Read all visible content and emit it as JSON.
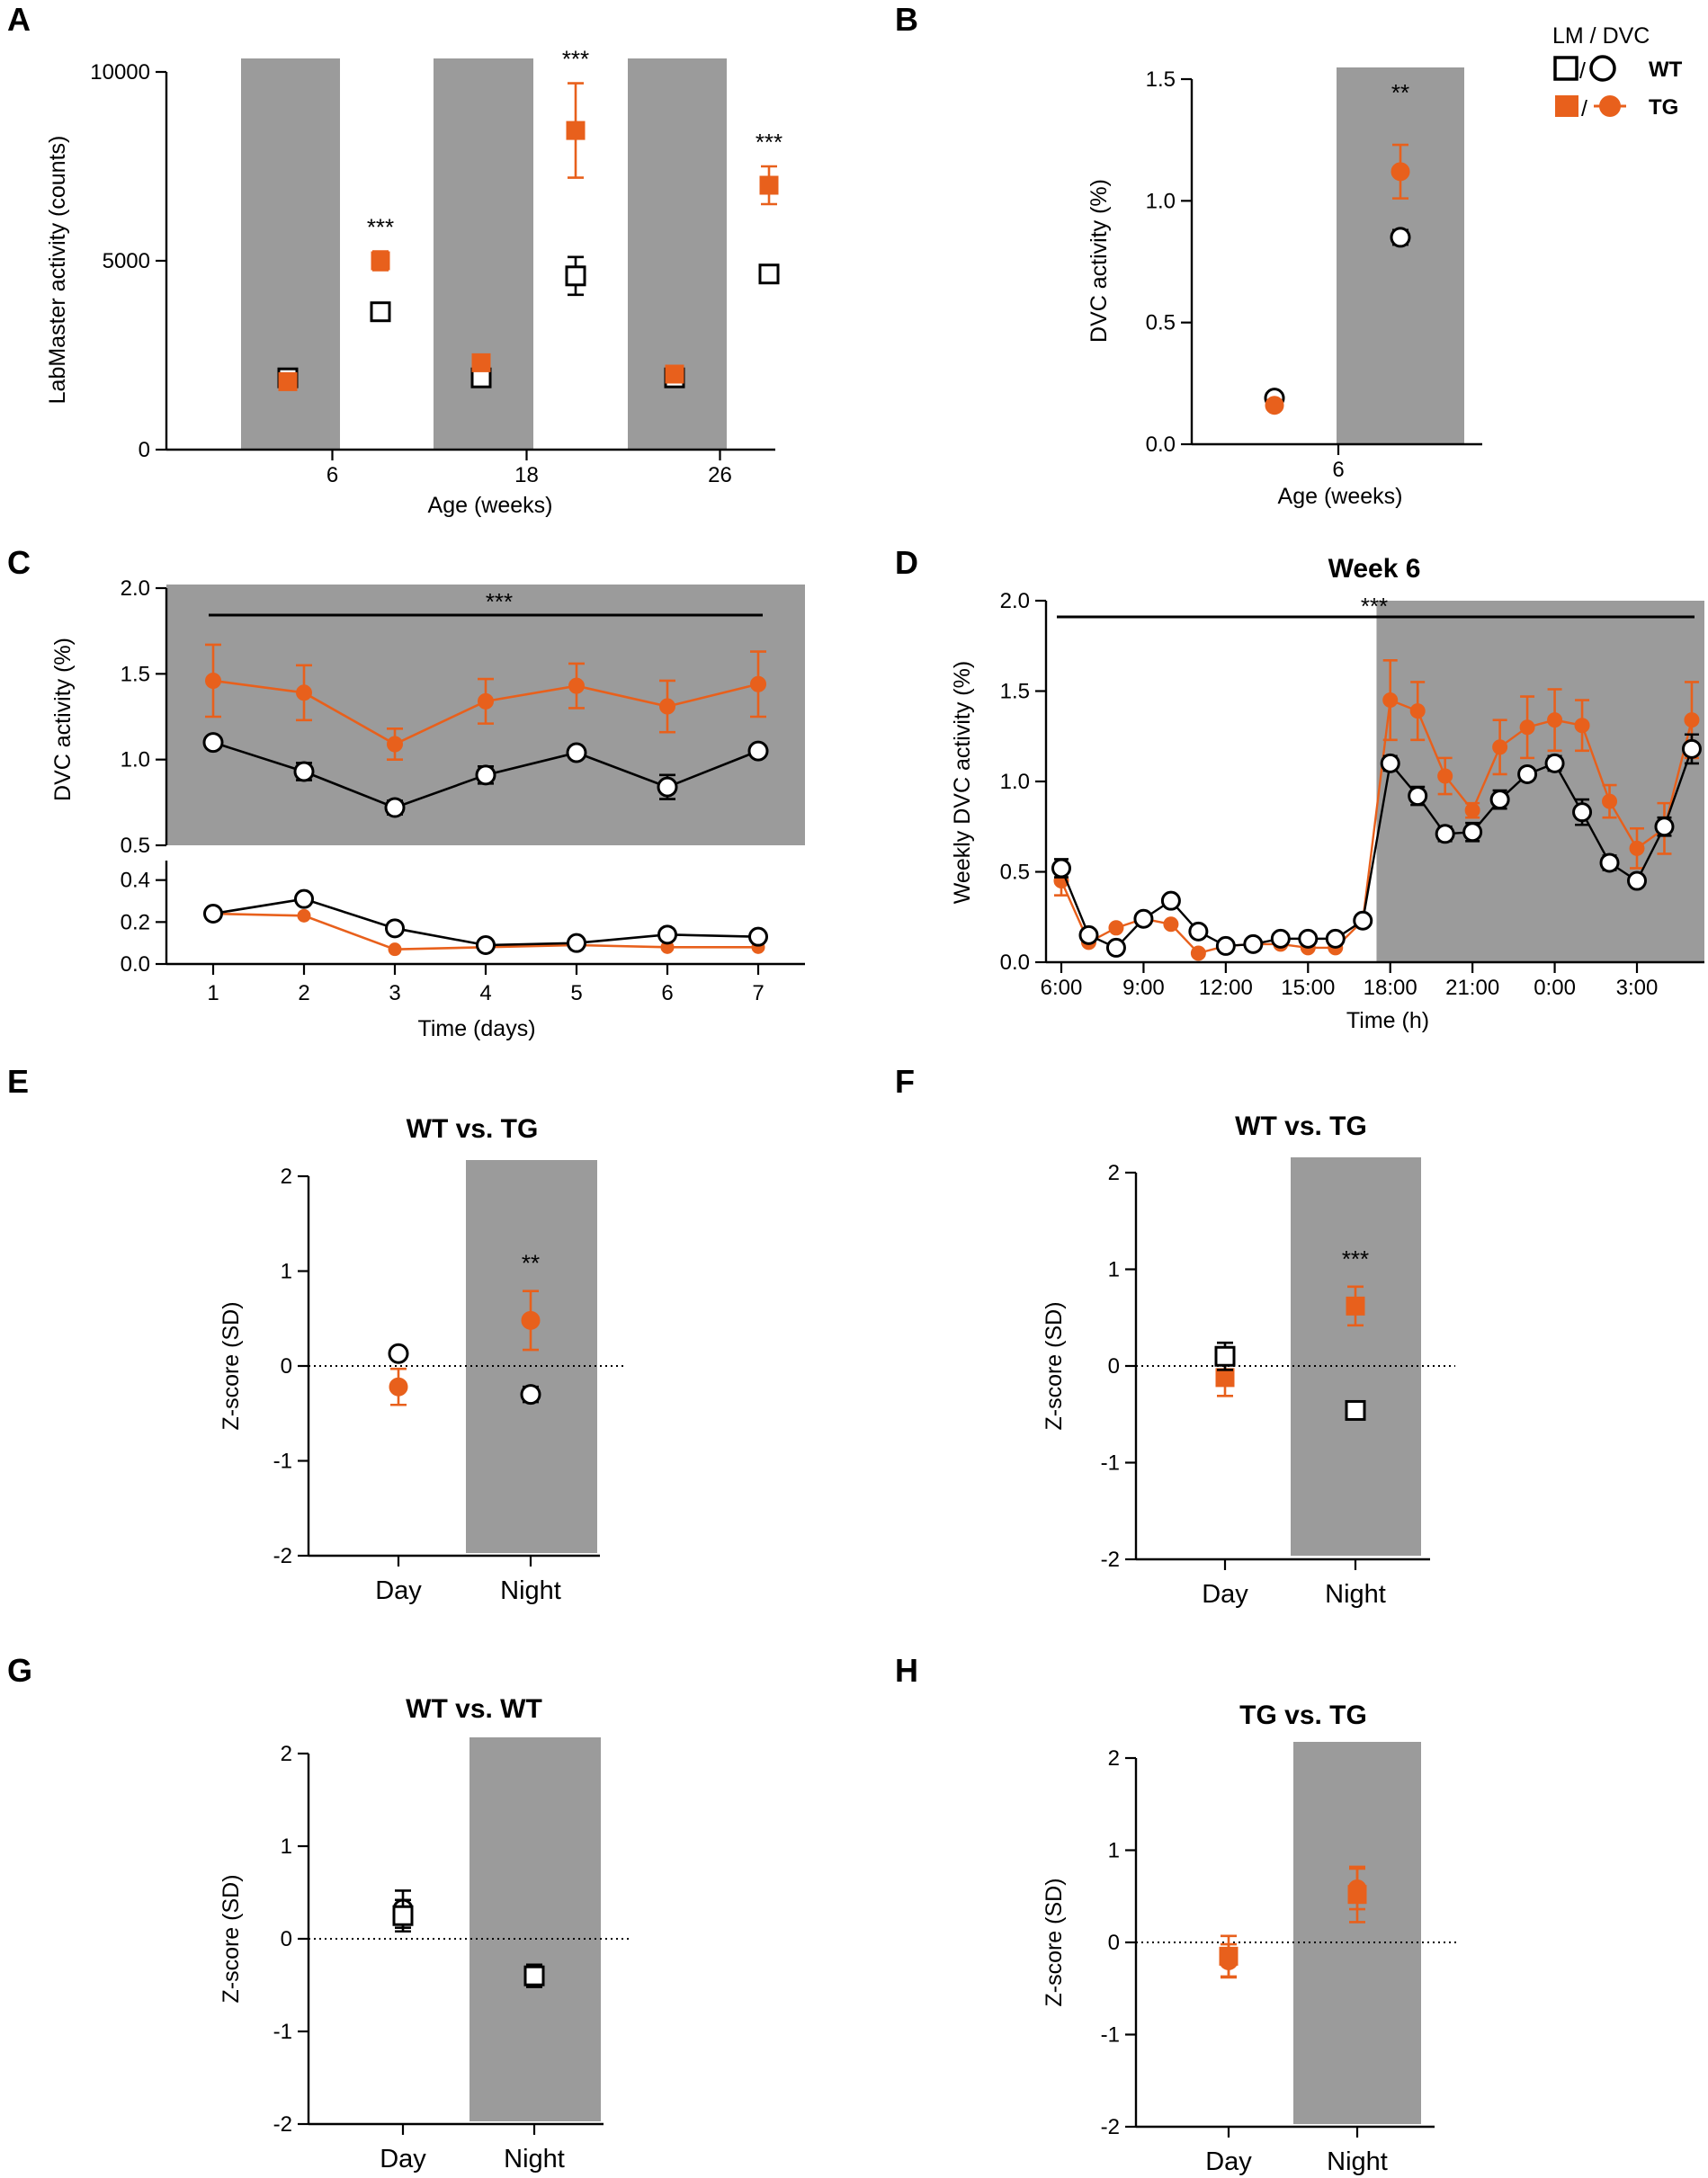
{
  "colors": {
    "wt": "#000000",
    "tg": "#E8601C",
    "night_shade": "#9B9B9B",
    "background": "#FFFFFF"
  },
  "legend": {
    "header": "LM / DVC",
    "wt_label": "WT",
    "tg_label": "TG"
  },
  "chart_data": [
    {
      "panel": "A",
      "type": "scatter",
      "title": "",
      "xlabel": "Age (weeks)",
      "ylabel": "LabMaster activity (counts)",
      "ylim": [
        0,
        10000
      ],
      "yticks": [
        0,
        5000,
        10000
      ],
      "ytick_labels": [
        "0",
        "5000",
        "10000"
      ],
      "categories": [
        "6",
        "18",
        "26"
      ],
      "series": [
        {
          "name": "WT",
          "marker": "square-open",
          "day": [
            1900,
            1900,
            1900
          ],
          "day_err": [
            50,
            120,
            150
          ],
          "night": [
            3650,
            4600,
            4650
          ],
          "night_err": [
            120,
            500,
            220
          ]
        },
        {
          "name": "TG",
          "marker": "square-filled",
          "day": [
            1800,
            2300,
            2000
          ],
          "day_err": [
            60,
            100,
            80
          ],
          "night": [
            5000,
            8450,
            7000
          ],
          "night_err": [
            250,
            1250,
            500
          ]
        }
      ],
      "significance": [
        "***",
        "***",
        "***"
      ]
    },
    {
      "panel": "B",
      "type": "scatter",
      "title": "",
      "xlabel": "Age (weeks)",
      "ylabel": "DVC activity (%)",
      "ylim": [
        0,
        1.5
      ],
      "yticks": [
        0,
        0.5,
        1.0,
        1.5
      ],
      "ytick_labels": [
        "0.0",
        "0.5",
        "1.0",
        "1.5"
      ],
      "categories": [
        "6"
      ],
      "series": [
        {
          "name": "WT",
          "marker": "circle-open",
          "day": [
            0.19
          ],
          "day_err": [
            0.01
          ],
          "night": [
            0.85
          ],
          "night_err": [
            0.03
          ]
        },
        {
          "name": "TG",
          "marker": "circle-filled",
          "day": [
            0.16
          ],
          "day_err": [
            0.01
          ],
          "night": [
            1.12
          ],
          "night_err": [
            0.11
          ]
        }
      ],
      "significance": [
        "**"
      ]
    },
    {
      "panel": "C",
      "type": "line",
      "title": "",
      "xlabel": "Time (days)",
      "ylabel": "DVC activity (%)",
      "x": [
        1,
        2,
        3,
        4,
        5,
        6,
        7
      ],
      "upper_ylim": [
        0.5,
        2.0
      ],
      "upper_yticks": [
        0.5,
        1.0,
        1.5,
        2.0
      ],
      "upper_ytick_labels": [
        "0.5",
        "1.0",
        "1.5",
        "2.0"
      ],
      "lower_ylim": [
        0.0,
        0.45
      ],
      "lower_yticks": [
        0.0,
        0.2,
        0.4
      ],
      "lower_ytick_labels": [
        "0.0",
        "0.2",
        "0.4"
      ],
      "night_series": [
        {
          "name": "WT",
          "values": [
            1.1,
            0.93,
            0.72,
            0.91,
            1.04,
            0.84,
            1.05
          ],
          "err": [
            0.01,
            0.05,
            0.04,
            0.05,
            0.01,
            0.07,
            0.01
          ]
        },
        {
          "name": "TG",
          "values": [
            1.46,
            1.39,
            1.09,
            1.34,
            1.43,
            1.31,
            1.44
          ],
          "err": [
            0.21,
            0.16,
            0.09,
            0.13,
            0.13,
            0.15,
            0.19
          ]
        }
      ],
      "day_series": [
        {
          "name": "WT",
          "values": [
            0.24,
            0.31,
            0.17,
            0.09,
            0.1,
            0.14,
            0.13
          ]
        },
        {
          "name": "TG",
          "values": [
            0.24,
            0.23,
            0.07,
            0.08,
            0.09,
            0.08,
            0.08
          ]
        }
      ],
      "significance": "***"
    },
    {
      "panel": "D",
      "type": "line",
      "title": "Week 6",
      "xlabel": "Time (h)",
      "ylabel": "Weekly DVC activity (%)",
      "ylim": [
        0,
        2.0
      ],
      "yticks": [
        0,
        0.5,
        1.0,
        1.5,
        2.0
      ],
      "ytick_labels": [
        "0.0",
        "0.5",
        "1.0",
        "1.5",
        "2.0"
      ],
      "xticks": [
        6,
        9,
        12,
        15,
        18,
        21,
        24,
        27
      ],
      "xtick_labels": [
        "6:00",
        "9:00",
        "12:00",
        "15:00",
        "18:00",
        "21:00",
        "0:00",
        "3:00"
      ],
      "x": [
        6,
        7,
        8,
        9,
        10,
        11,
        12,
        13,
        14,
        15,
        16,
        17,
        18,
        19,
        20,
        21,
        22,
        23,
        24,
        25,
        26,
        27,
        28,
        29
      ],
      "night_start": 17.5,
      "series": [
        {
          "name": "WT",
          "values": [
            0.52,
            0.15,
            0.08,
            0.24,
            0.34,
            0.17,
            0.09,
            0.1,
            0.13,
            0.13,
            0.13,
            0.23,
            1.1,
            0.92,
            0.71,
            0.72,
            0.9,
            1.04,
            1.1,
            0.83,
            0.55,
            0.45,
            0.75,
            1.18
          ],
          "err": [
            0.05,
            0.01,
            0.01,
            0.01,
            0.01,
            0.01,
            0.01,
            0.01,
            0.01,
            0.01,
            0.01,
            0.01,
            0.04,
            0.05,
            0.04,
            0.05,
            0.05,
            0.02,
            0.04,
            0.07,
            0.04,
            0.01,
            0.05,
            0.08
          ]
        },
        {
          "name": "TG",
          "values": [
            0.45,
            0.11,
            0.19,
            0.24,
            0.21,
            0.05,
            0.09,
            0.1,
            0.1,
            0.08,
            0.08,
            0.23,
            1.45,
            1.39,
            1.03,
            0.84,
            1.19,
            1.3,
            1.34,
            1.31,
            0.89,
            0.63,
            0.74,
            1.34
          ],
          "err": [
            0.08,
            0.01,
            0.01,
            0.01,
            0.01,
            0.01,
            0.01,
            0.01,
            0.01,
            0.01,
            0.01,
            0.01,
            0.22,
            0.16,
            0.1,
            0.04,
            0.15,
            0.17,
            0.17,
            0.14,
            0.09,
            0.11,
            0.14,
            0.21
          ]
        }
      ],
      "significance": "***"
    },
    {
      "panel": "E",
      "type": "scatter",
      "title": "WT vs. TG",
      "xlabel": "",
      "ylabel": "Z-score (SD)",
      "ylim": [
        -2,
        2
      ],
      "yticks": [
        -2,
        -1,
        0,
        1,
        2
      ],
      "ytick_labels": [
        "-2",
        "-1",
        "0",
        "1",
        "2"
      ],
      "categories": [
        "Day",
        "Night"
      ],
      "series": [
        {
          "name": "WT",
          "marker": "circle-open",
          "values": [
            0.13,
            -0.3
          ],
          "err": [
            0.02,
            0.08
          ]
        },
        {
          "name": "TG",
          "marker": "circle-filled",
          "values": [
            -0.22,
            0.48
          ],
          "err": [
            0.19,
            0.31
          ]
        }
      ],
      "significance": [
        "",
        "**"
      ]
    },
    {
      "panel": "F",
      "type": "scatter",
      "title": "WT vs. TG",
      "xlabel": "",
      "ylabel": "Z-score (SD)",
      "ylim": [
        -2,
        2
      ],
      "yticks": [
        -2,
        -1,
        0,
        1,
        2
      ],
      "ytick_labels": [
        "-2",
        "-1",
        "0",
        "1",
        "2"
      ],
      "categories": [
        "Day",
        "Night"
      ],
      "series": [
        {
          "name": "WT",
          "marker": "square-open",
          "values": [
            0.1,
            -0.46
          ],
          "err": [
            0.14,
            0.07
          ]
        },
        {
          "name": "TG",
          "marker": "square-filled",
          "values": [
            -0.12,
            0.62
          ],
          "err": [
            0.19,
            0.2
          ]
        }
      ],
      "significance": [
        "",
        "***"
      ]
    },
    {
      "panel": "G",
      "type": "scatter",
      "title": "WT vs. WT",
      "xlabel": "",
      "ylabel": "Z-score (SD)",
      "ylim": [
        -2,
        2
      ],
      "yticks": [
        -2,
        -1,
        0,
        1,
        2
      ],
      "ytick_labels": [
        "-2",
        "-1",
        "0",
        "1",
        "2"
      ],
      "categories": [
        "Day",
        "Night"
      ],
      "series": [
        {
          "name": "WT (LM)",
          "marker": "square-open",
          "values": [
            0.25,
            -0.4
          ],
          "err": [
            0.17,
            0.12
          ]
        },
        {
          "name": "WT (DVC)",
          "marker": "circle-open",
          "values": [
            0.32,
            -0.38
          ],
          "err": [
            0.2,
            0.1
          ]
        }
      ],
      "significance": [
        "",
        ""
      ]
    },
    {
      "panel": "H",
      "type": "scatter",
      "title": "TG vs. TG",
      "xlabel": "",
      "ylabel": "Z-score (SD)",
      "ylim": [
        -2,
        2
      ],
      "yticks": [
        -2,
        -1,
        0,
        1,
        2
      ],
      "ytick_labels": [
        "-2",
        "-1",
        "0",
        "1",
        "2"
      ],
      "categories": [
        "Day",
        "Night"
      ],
      "series": [
        {
          "name": "TG (LM)",
          "marker": "square-filled",
          "values": [
            -0.15,
            0.52
          ],
          "err": [
            0.22,
            0.3
          ]
        },
        {
          "name": "TG (DVC)",
          "marker": "circle-filled",
          "values": [
            -0.2,
            0.58
          ],
          "err": [
            0.18,
            0.22
          ]
        }
      ],
      "significance": [
        "",
        ""
      ]
    }
  ]
}
